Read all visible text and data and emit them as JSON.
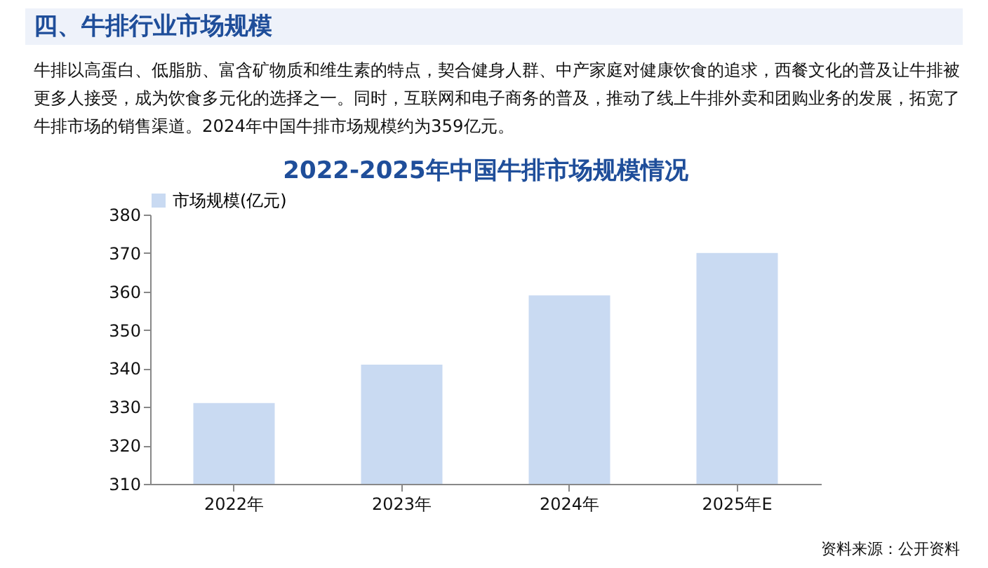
{
  "chart_data": {
    "type": "bar",
    "title": "2022-2025年中国牛排市场规模情况",
    "annotations": [
      "四、牛排行业市场规模",
      "牛排以高蛋白、低脂肪、富含矿物质和维生素的特点，契合健身人群、中产家庭对健康饮食的追求，西餐文化的普及让牛排被更多人接受，成为饮食多元化的选择之一。同时，互联网和电子商务的普及，推动了线上牛排外卖和团购业务的发展，拓宽了牛排市场的销售渠道。2024年中国牛排市场规模约为359亿元。",
      "资料来源：公开资料"
    ],
    "categories": [
      "2022年",
      "2023年",
      "2024年",
      "2025年E"
    ],
    "series": [
      {
        "name": "市场规模(亿元)",
        "color": "#c9daf2",
        "values": [
          331,
          341,
          359,
          370
        ]
      }
    ],
    "ylim": [
      310,
      380
    ],
    "yticks": [
      310,
      320,
      330,
      340,
      350,
      360,
      370,
      380
    ],
    "grid": false,
    "legend": "top"
  }
}
